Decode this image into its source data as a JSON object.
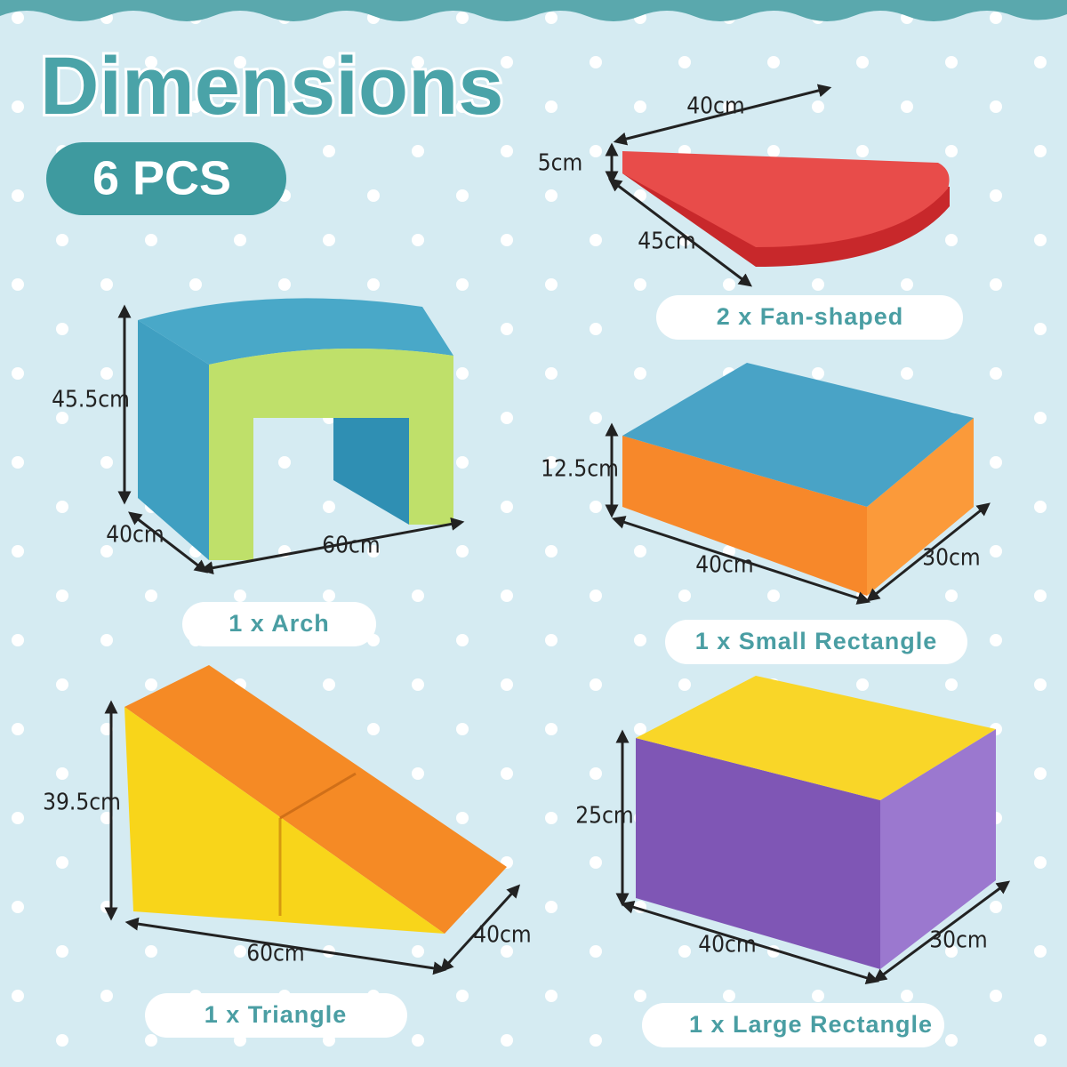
{
  "header": {
    "title": "Dimensions",
    "badge": "6 PCS"
  },
  "items": [
    {
      "label": "2 x Fan-shaped",
      "dims": [
        "40cm",
        "5cm",
        "45cm"
      ]
    },
    {
      "label": "1 x Arch",
      "dims": [
        "45.5cm",
        "40cm",
        "60cm"
      ]
    },
    {
      "label": "1 x Small Rectangle",
      "dims": [
        "12.5cm",
        "40cm",
        "30cm"
      ]
    },
    {
      "label": "1 x Triangle",
      "dims": [
        "39.5cm",
        "60cm",
        "40cm"
      ]
    },
    {
      "label": "1 x Large Rectangle",
      "dims": [
        "25cm",
        "40cm",
        "30cm"
      ]
    }
  ]
}
